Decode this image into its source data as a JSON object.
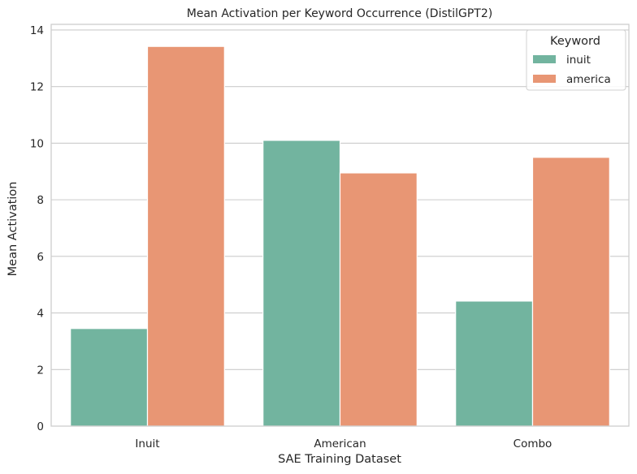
{
  "chart_data": {
    "type": "bar",
    "title": "Mean Activation per Keyword Occurrence (DistilGPT2)",
    "xlabel": "SAE Training Dataset",
    "ylabel": "Mean Activation",
    "categories": [
      "Inuit",
      "American",
      "Combo"
    ],
    "series": [
      {
        "name": "inuit",
        "color": "#72b49f",
        "values": [
          3.45,
          10.1,
          4.42
        ]
      },
      {
        "name": "america",
        "color": "#e89674",
        "values": [
          13.42,
          8.95,
          9.5
        ]
      }
    ],
    "ylim": [
      0,
      14.2
    ],
    "yticks": [
      0,
      2,
      4,
      6,
      8,
      10,
      12,
      14
    ],
    "grid": "y",
    "legend": {
      "title": "Keyword",
      "position": "top-right"
    }
  }
}
